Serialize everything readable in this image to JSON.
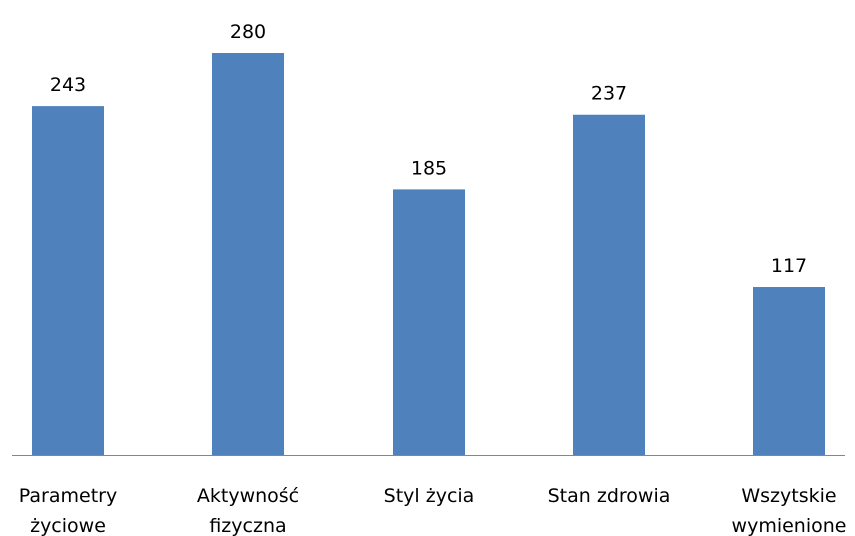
{
  "chart_data": {
    "type": "bar",
    "categories": [
      [
        "Parametry",
        "życiowe"
      ],
      [
        "Aktywność",
        "fizyczna"
      ],
      [
        "Styl życia"
      ],
      [
        "Stan zdrowia"
      ],
      [
        "Wszytskie",
        "wymienione"
      ]
    ],
    "values": [
      243,
      280,
      185,
      237,
      117
    ],
    "data_labels": [
      "243",
      "280",
      "185",
      "237",
      "117"
    ],
    "title": "",
    "xlabel": "",
    "ylabel": "",
    "ylim": [
      0,
      280
    ],
    "grid": false,
    "legend": "none",
    "bar_color": "#4F81BD",
    "axis_color": "#868686"
  }
}
